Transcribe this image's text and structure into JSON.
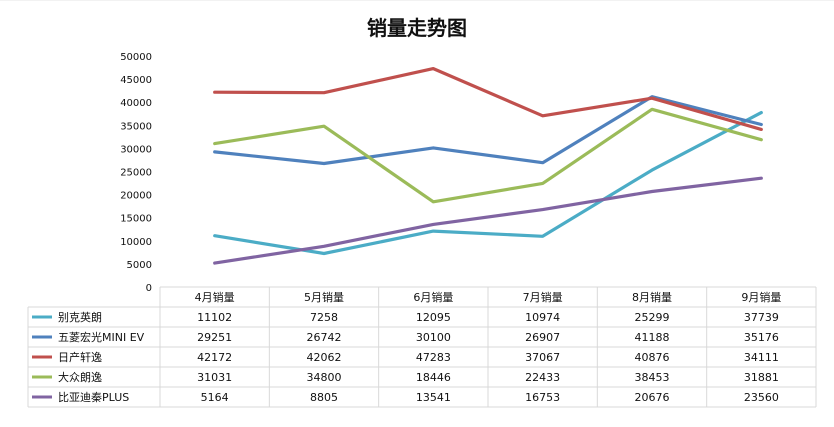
{
  "title": "销量走势图",
  "chart_data": {
    "type": "line",
    "title": "销量走势图",
    "xlabel": "",
    "ylabel": "",
    "ylim": [
      0,
      50000
    ],
    "yticks": [
      0,
      5000,
      10000,
      15000,
      20000,
      25000,
      30000,
      35000,
      40000,
      45000,
      50000
    ],
    "grid": false,
    "legend_placement": "data-table",
    "categories": [
      "4月销量",
      "5月销量",
      "6月销量",
      "7月销量",
      "8月销量",
      "9月销量"
    ],
    "series": [
      {
        "name": "别克英朗",
        "color": "#4bacc6",
        "values": [
          11102,
          7258,
          12095,
          10974,
          25299,
          37739
        ]
      },
      {
        "name": "五菱宏光MINI EV",
        "color": "#4f81bd",
        "values": [
          29251,
          26742,
          30100,
          26907,
          41188,
          35176
        ]
      },
      {
        "name": "日产轩逸",
        "color": "#c0504d",
        "values": [
          42172,
          42062,
          47283,
          37067,
          40876,
          34111
        ]
      },
      {
        "name": "大众朗逸",
        "color": "#9bbb59",
        "values": [
          31031,
          34800,
          18446,
          22433,
          38453,
          31881
        ]
      },
      {
        "name": "比亚迪秦PLUS",
        "color": "#8064a2",
        "values": [
          5164,
          8805,
          13541,
          16753,
          20676,
          23560
        ]
      }
    ]
  }
}
